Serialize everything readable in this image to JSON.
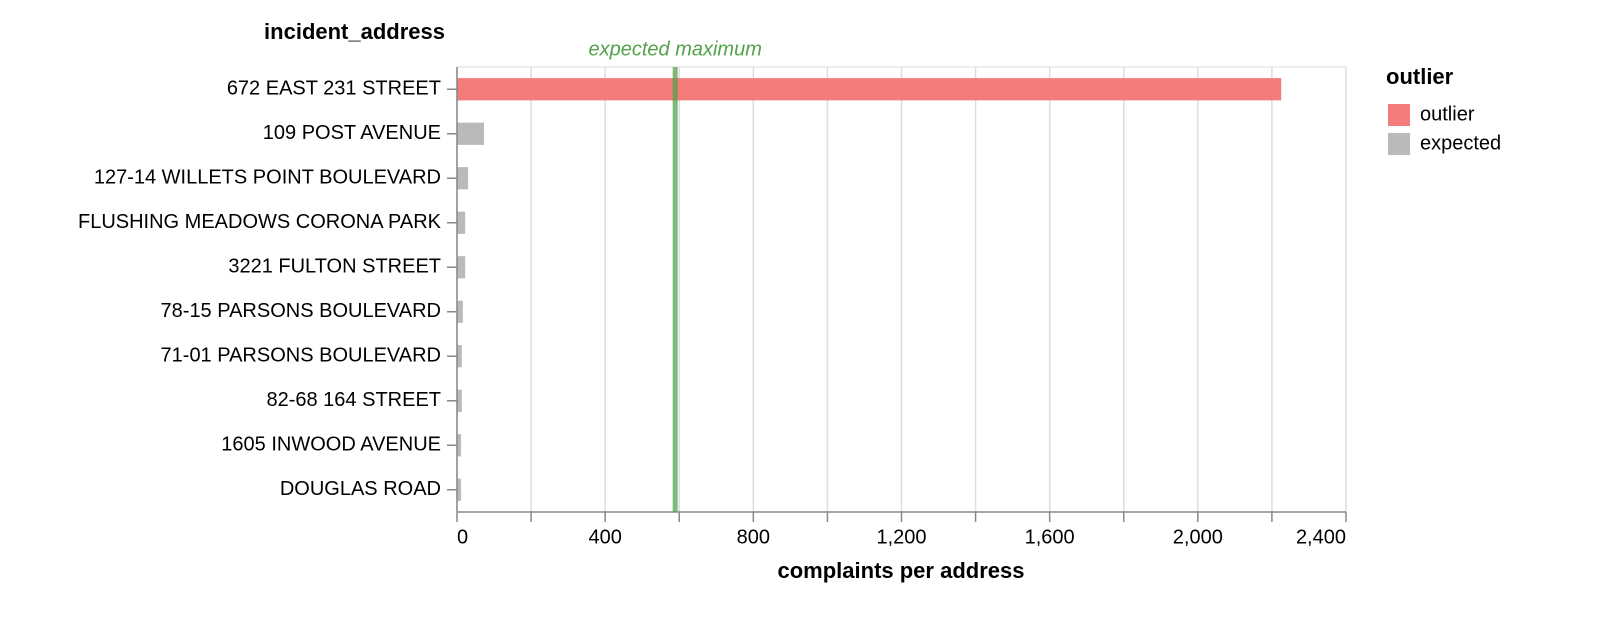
{
  "chart_data": {
    "type": "bar",
    "orientation": "horizontal",
    "y_axis_title": "incident_address",
    "x_axis_title": "complaints per address",
    "categories": [
      "672 EAST 231 STREET",
      "109 POST AVENUE",
      "127-14 WILLETS POINT BOULEVARD",
      "FLUSHING MEADOWS CORONA PARK",
      "3221 FULTON STREET",
      "78-15 PARSONS BOULEVARD",
      "71-01 PARSONS BOULEVARD",
      "82-68 164 STREET",
      "1605 INWOOD AVENUE",
      "DOUGLAS ROAD"
    ],
    "series": [
      {
        "name": "outlier",
        "color": "#f37b79",
        "values": [
          2225,
          null,
          null,
          null,
          null,
          null,
          null,
          null,
          null,
          null
        ]
      },
      {
        "name": "expected",
        "color": "#bababa",
        "values": [
          null,
          73,
          30,
          22,
          22,
          16,
          13,
          13,
          11,
          11
        ]
      }
    ],
    "legend_title": "outlier",
    "legend": "right",
    "rule": {
      "value": 589,
      "label": "expected maximum",
      "color": "#54a24b"
    },
    "xlim": [
      0,
      2400
    ],
    "xticks": [
      0,
      400,
      800,
      {
        "value": 1200,
        "label": "1,200"
      },
      {
        "value": 1600,
        "label": "1,600"
      },
      {
        "value": 2000,
        "label": "2,000"
      },
      {
        "value": 2400,
        "label": "2,400"
      }
    ],
    "x_minor_ticks": [
      200,
      600,
      1000,
      1400,
      1800,
      2200
    ],
    "grid": true
  }
}
